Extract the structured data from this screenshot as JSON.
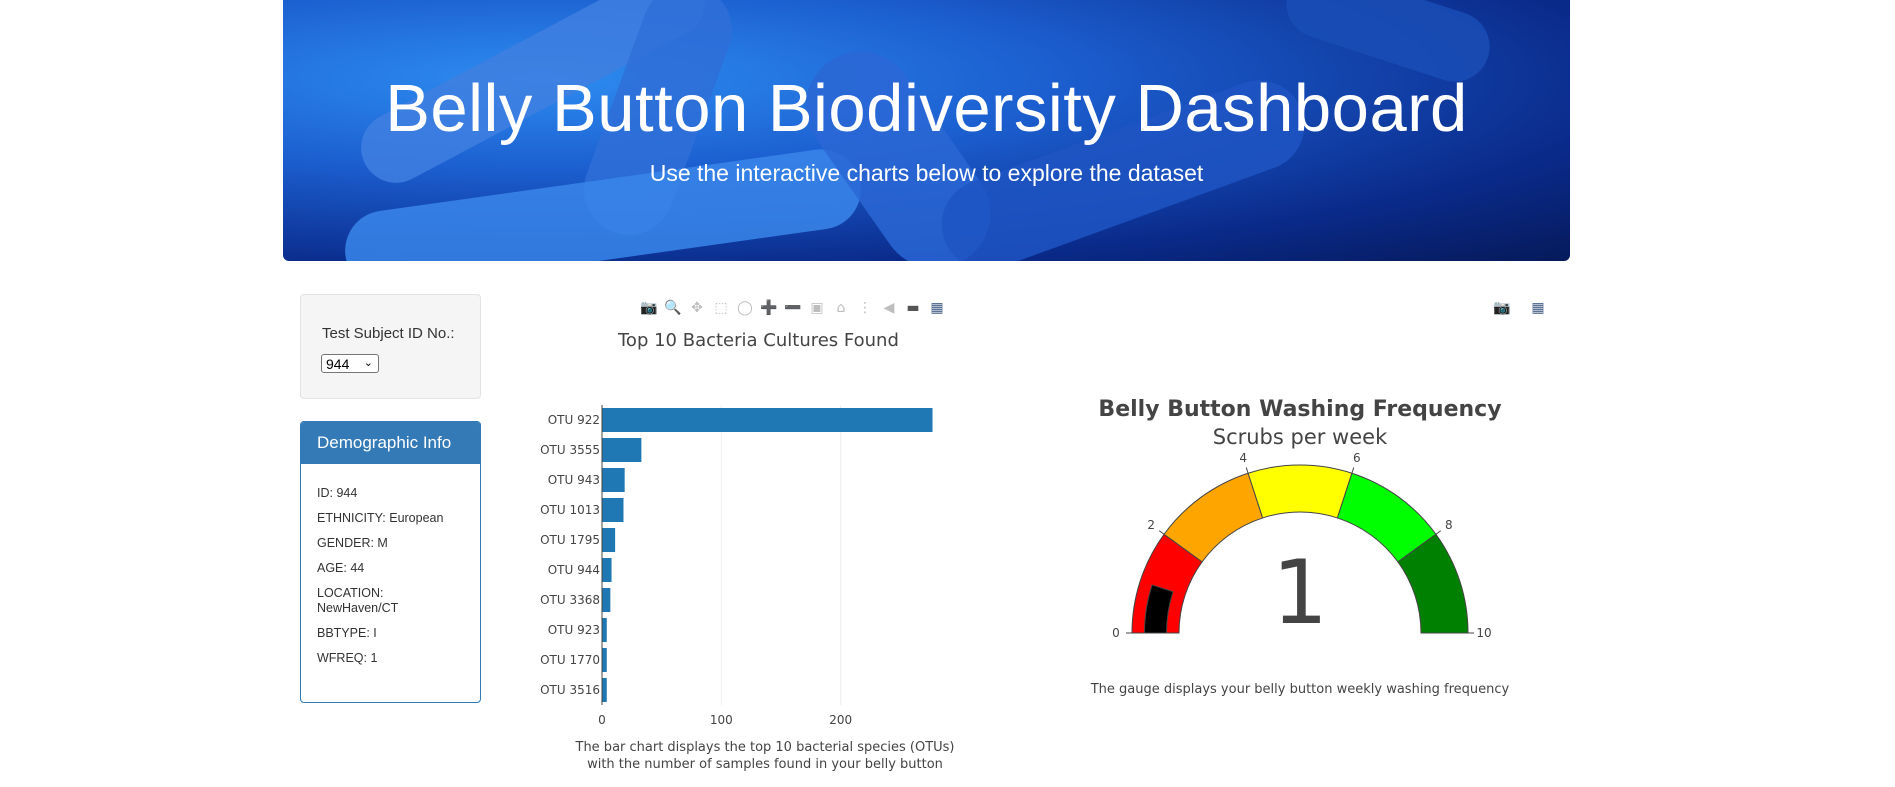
{
  "header": {
    "title": "Belly Button Biodiversity Dashboard",
    "subtitle": "Use the interactive charts below to explore the dataset"
  },
  "selector": {
    "label": "Test Subject ID No.:",
    "selected": "944"
  },
  "demographics": {
    "heading": "Demographic Info",
    "lines": [
      "ID: 944",
      "ETHNICITY: European",
      "GENDER: M",
      "AGE: 44",
      "LOCATION: NewHaven/CT",
      "BBTYPE: I",
      "WFREQ: 1"
    ]
  },
  "bar_toolbar_icons": [
    "camera-icon",
    "zoom-icon",
    "pan-icon",
    "box-select-icon",
    "lasso-select-icon",
    "zoom-in-icon",
    "zoom-out-icon",
    "autoscale-icon",
    "reset-axes-icon",
    "spike-lines-icon",
    "hover-closest-icon",
    "hover-compare-icon",
    "plotly-logo-icon"
  ],
  "gauge_toolbar_icons": [
    "camera-icon",
    "plotly-logo-icon"
  ],
  "bar_caption": [
    "The bar chart displays the top 10 bacterial species (OTUs)",
    "with the number of samples found in your belly button"
  ],
  "gauge_caption": "The gauge displays your belly button weekly washing frequency",
  "chart_data": [
    {
      "type": "bar",
      "orientation": "horizontal",
      "title": "Top 10 Bacteria Cultures Found",
      "categories": [
        "OTU 922",
        "OTU 3555",
        "OTU 943",
        "OTU 1013",
        "OTU 1795",
        "OTU 944",
        "OTU 3368",
        "OTU 923",
        "OTU 1770",
        "OTU 3516"
      ],
      "values": [
        277,
        33,
        19,
        18,
        11,
        8,
        7,
        4,
        4,
        4
      ],
      "xticks": [
        0,
        100,
        200
      ],
      "xlim": [
        0,
        295
      ],
      "color": "#1f77b4",
      "grid": true
    },
    {
      "type": "gauge",
      "title": "Belly Button Washing Frequency",
      "subtitle": "Scrubs per week",
      "value": 1,
      "range": [
        0,
        10
      ],
      "ticks": [
        0,
        2,
        4,
        6,
        8,
        10
      ],
      "steps": [
        {
          "range": [
            0,
            2
          ],
          "color": "#ff0000"
        },
        {
          "range": [
            2,
            4
          ],
          "color": "#ffa500"
        },
        {
          "range": [
            4,
            6
          ],
          "color": "#ffff00"
        },
        {
          "range": [
            6,
            8
          ],
          "color": "#00ff00"
        },
        {
          "range": [
            8,
            10
          ],
          "color": "#008000"
        }
      ],
      "bar_color": "#000000"
    }
  ]
}
